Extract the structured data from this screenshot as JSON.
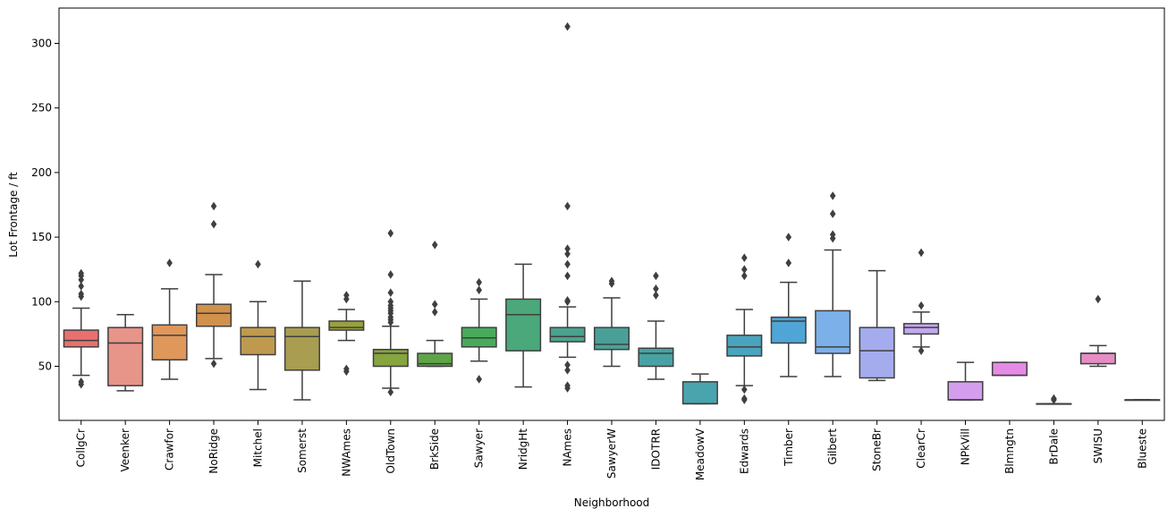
{
  "chart_data": {
    "type": "box",
    "title": "",
    "xlabel": "Neighborhood",
    "ylabel": "Lot Frontage / ft",
    "ylim": [
      5,
      325
    ],
    "yticks": [
      50,
      100,
      150,
      200,
      250,
      300
    ],
    "grid": false,
    "categories": [
      {
        "name": "CollgCr",
        "color": "#e8716f",
        "whislo": 43,
        "q1": 65,
        "med": 70,
        "q3": 78,
        "whishi": 95,
        "fliers": [
          36,
          38,
          104,
          106,
          112,
          117,
          120,
          122
        ]
      },
      {
        "name": "Veenker",
        "color": "#e79489",
        "whislo": 31,
        "q1": 35,
        "med": 68,
        "q3": 80,
        "whishi": 90,
        "fliers": []
      },
      {
        "name": "Crawfor",
        "color": "#e0975a",
        "whislo": 40,
        "q1": 55,
        "med": 74,
        "q3": 82,
        "whishi": 110,
        "fliers": [
          130
        ]
      },
      {
        "name": "NoRidge",
        "color": "#d0914c",
        "whislo": 56,
        "q1": 81,
        "med": 91,
        "q3": 98,
        "whishi": 121,
        "fliers": [
          52,
          160,
          174
        ]
      },
      {
        "name": "Mitchel",
        "color": "#bf9a4e",
        "whislo": 32,
        "q1": 59,
        "med": 73,
        "q3": 80,
        "whishi": 100,
        "fliers": [
          129
        ]
      },
      {
        "name": "Somerst",
        "color": "#a89d50",
        "whislo": 24,
        "q1": 47,
        "med": 73,
        "q3": 80,
        "whishi": 116,
        "fliers": []
      },
      {
        "name": "NWAmes",
        "color": "#98a23c",
        "whislo": 70,
        "q1": 78,
        "med": 80,
        "q3": 85,
        "whishi": 94,
        "fliers": [
          46,
          48,
          102,
          105
        ]
      },
      {
        "name": "OldTown",
        "color": "#86a53e",
        "whislo": 33,
        "q1": 50,
        "med": 60,
        "q3": 63,
        "whishi": 81,
        "fliers": [
          30,
          84,
          86,
          88,
          91,
          93,
          95,
          97,
          100,
          107,
          121,
          153
        ]
      },
      {
        "name": "BrkSide",
        "color": "#60a448",
        "whislo": 50,
        "q1": 50,
        "med": 52,
        "q3": 60,
        "whishi": 70,
        "fliers": [
          92,
          98,
          144
        ]
      },
      {
        "name": "Sawyer",
        "color": "#47ab5a",
        "whislo": 54,
        "q1": 65,
        "med": 72,
        "q3": 80,
        "whishi": 102,
        "fliers": [
          40,
          109,
          115
        ]
      },
      {
        "name": "NridgHt",
        "color": "#4aa87b",
        "whislo": 34,
        "q1": 62,
        "med": 90,
        "q3": 102,
        "whishi": 129,
        "fliers": []
      },
      {
        "name": "NAmes",
        "color": "#4ba28c",
        "whislo": 57,
        "q1": 69,
        "med": 73,
        "q3": 80,
        "whishi": 96,
        "fliers": [
          33,
          35,
          47,
          51,
          100,
          101,
          120,
          129,
          137,
          141,
          174,
          313
        ]
      },
      {
        "name": "SawyerW",
        "color": "#4aa098",
        "whislo": 50,
        "q1": 63,
        "med": 67,
        "q3": 80,
        "whishi": 103,
        "fliers": [
          114,
          116
        ]
      },
      {
        "name": "IDOTRR",
        "color": "#48a2a3",
        "whislo": 40,
        "q1": 50,
        "med": 60,
        "q3": 64,
        "whishi": 85,
        "fliers": [
          105,
          110,
          120
        ]
      },
      {
        "name": "MeadowV",
        "color": "#49a4ae",
        "whislo": 21,
        "q1": 21,
        "med": 21,
        "q3": 38,
        "whishi": 44,
        "fliers": []
      },
      {
        "name": "Edwards",
        "color": "#4aa4bd",
        "whislo": 35,
        "q1": 58,
        "med": 65,
        "q3": 74,
        "whishi": 94,
        "fliers": [
          24,
          25,
          32,
          120,
          125,
          134
        ]
      },
      {
        "name": "Timber",
        "color": "#4fa5d6",
        "whislo": 42,
        "q1": 68,
        "med": 85,
        "q3": 88,
        "whishi": 115,
        "fliers": [
          130,
          150
        ]
      },
      {
        "name": "Gilbert",
        "color": "#7bb0e9",
        "whislo": 42,
        "q1": 60,
        "med": 65,
        "q3": 93,
        "whishi": 140,
        "fliers": [
          149,
          152,
          168,
          182
        ]
      },
      {
        "name": "StoneBr",
        "color": "#a4acee",
        "whislo": 39,
        "q1": 41,
        "med": 62,
        "q3": 80,
        "whishi": 124,
        "fliers": []
      },
      {
        "name": "ClearCr",
        "color": "#c2a8ef",
        "whislo": 65,
        "q1": 75,
        "med": 80,
        "q3": 83,
        "whishi": 92,
        "fliers": [
          62,
          97,
          138
        ]
      },
      {
        "name": "NPkVill",
        "color": "#d59ded",
        "whislo": 24,
        "q1": 24,
        "med": 24,
        "q3": 38,
        "whishi": 53,
        "fliers": []
      },
      {
        "name": "Blmngtn",
        "color": "#e58be5",
        "whislo": 43,
        "q1": 43,
        "med": 43,
        "q3": 53,
        "whishi": 53,
        "fliers": []
      },
      {
        "name": "BrDale",
        "color": "#e79ad4",
        "whislo": 21,
        "q1": 21,
        "med": 21,
        "q3": 21,
        "whishi": 21,
        "fliers": [
          24,
          25
        ]
      },
      {
        "name": "SWISU",
        "color": "#e58dc4",
        "whislo": 50,
        "q1": 52,
        "med": 60,
        "q3": 60,
        "whishi": 66,
        "fliers": [
          102
        ]
      },
      {
        "name": "Blueste",
        "color": "#e38fb4",
        "whislo": 24,
        "q1": 24,
        "med": 24,
        "q3": 24,
        "whishi": 24,
        "fliers": []
      }
    ]
  }
}
